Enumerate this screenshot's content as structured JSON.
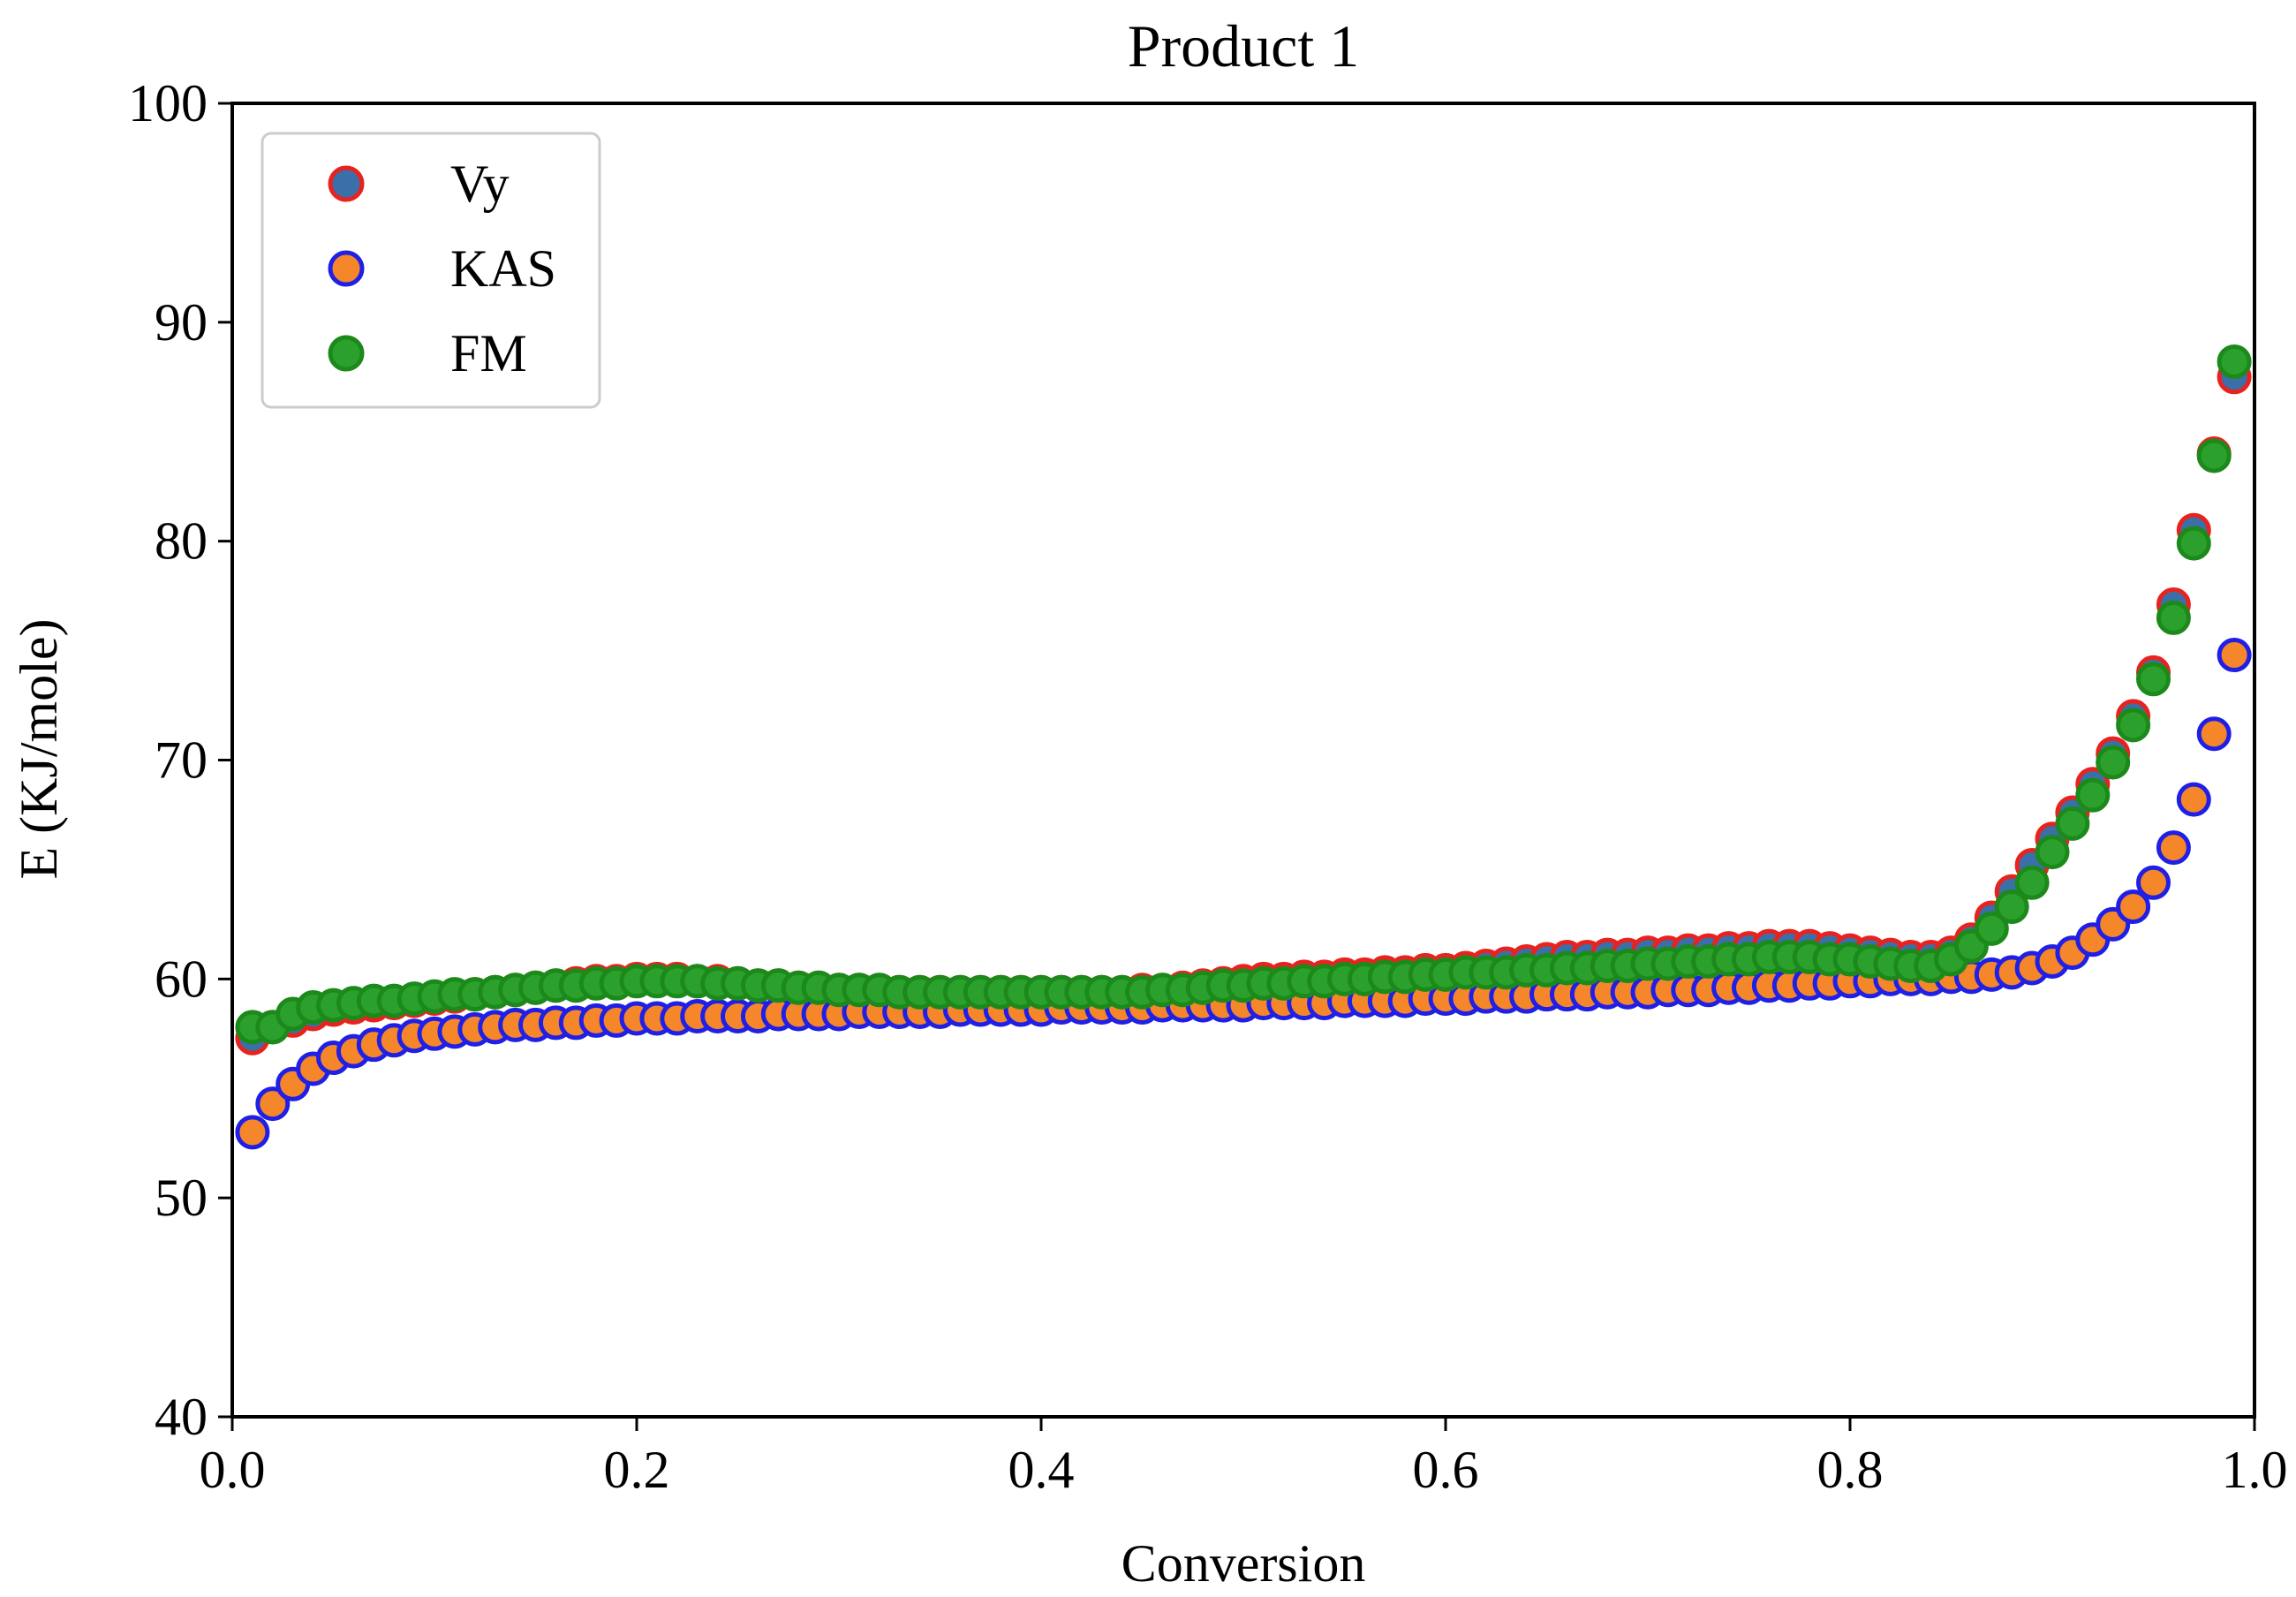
{
  "chart_data": {
    "type": "scatter",
    "title": "Product 1",
    "xlabel": "Conversion",
    "ylabel": "E (KJ/mole)",
    "xlim": [
      0.0,
      1.0
    ],
    "ylim": [
      40,
      100
    ],
    "xticks": [
      0.0,
      0.2,
      0.4,
      0.6,
      0.8,
      1.0
    ],
    "xtick_labels": [
      "0.0",
      "0.2",
      "0.4",
      "0.6",
      "0.8",
      "1.0"
    ],
    "yticks": [
      40,
      50,
      60,
      70,
      80,
      90,
      100
    ],
    "ytick_labels": [
      "40",
      "50",
      "60",
      "70",
      "80",
      "90",
      "100"
    ],
    "grid": false,
    "legend_position": "top-left",
    "x": [
      0.01,
      0.02,
      0.03,
      0.04,
      0.05,
      0.06,
      0.07,
      0.08,
      0.09,
      0.1,
      0.11,
      0.12,
      0.13,
      0.14,
      0.15,
      0.16,
      0.17,
      0.18,
      0.19,
      0.2,
      0.21,
      0.22,
      0.23,
      0.24,
      0.25,
      0.26,
      0.27,
      0.28,
      0.29,
      0.3,
      0.31,
      0.32,
      0.33,
      0.34,
      0.35,
      0.36,
      0.37,
      0.38,
      0.39,
      0.4,
      0.41,
      0.42,
      0.43,
      0.44,
      0.45,
      0.46,
      0.47,
      0.48,
      0.49,
      0.5,
      0.51,
      0.52,
      0.53,
      0.54,
      0.55,
      0.56,
      0.57,
      0.58,
      0.59,
      0.6,
      0.61,
      0.62,
      0.63,
      0.64,
      0.65,
      0.66,
      0.67,
      0.68,
      0.69,
      0.7,
      0.71,
      0.72,
      0.73,
      0.74,
      0.75,
      0.76,
      0.77,
      0.78,
      0.79,
      0.8,
      0.81,
      0.82,
      0.83,
      0.84,
      0.85,
      0.86,
      0.87,
      0.88,
      0.89,
      0.9,
      0.91,
      0.92,
      0.93,
      0.94,
      0.95,
      0.96,
      0.97,
      0.98,
      0.99
    ],
    "series": [
      {
        "name": "Vy",
        "fill": "#3b6fa8",
        "edge": "#e8231f",
        "values": [
          57.3,
          57.8,
          58.1,
          58.4,
          58.6,
          58.7,
          58.8,
          58.9,
          59.0,
          59.1,
          59.2,
          59.3,
          59.4,
          59.5,
          59.6,
          59.7,
          59.8,
          59.9,
          59.9,
          60.0,
          60.0,
          60.0,
          59.9,
          59.9,
          59.8,
          59.7,
          59.7,
          59.6,
          59.6,
          59.5,
          59.5,
          59.5,
          59.4,
          59.4,
          59.4,
          59.4,
          59.4,
          59.4,
          59.4,
          59.4,
          59.4,
          59.4,
          59.4,
          59.4,
          59.5,
          59.5,
          59.6,
          59.7,
          59.8,
          59.9,
          60.0,
          60.0,
          60.1,
          60.1,
          60.2,
          60.2,
          60.3,
          60.3,
          60.4,
          60.4,
          60.5,
          60.6,
          60.7,
          60.8,
          60.9,
          61.0,
          61.0,
          61.1,
          61.1,
          61.2,
          61.2,
          61.3,
          61.3,
          61.4,
          61.4,
          61.5,
          61.5,
          61.5,
          61.4,
          61.3,
          61.2,
          61.1,
          61.0,
          61.0,
          61.2,
          61.8,
          62.8,
          64.0,
          65.2,
          66.4,
          67.6,
          68.9,
          70.3,
          72.0,
          74.0,
          77.1,
          80.5,
          84.0,
          87.5
        ]
      },
      {
        "name": "KAS",
        "fill": "#f5862a",
        "edge": "#1f1fe6",
        "values": [
          53.0,
          54.3,
          55.2,
          55.9,
          56.4,
          56.7,
          57.0,
          57.2,
          57.4,
          57.5,
          57.6,
          57.7,
          57.8,
          57.9,
          57.9,
          58.0,
          58.0,
          58.1,
          58.1,
          58.2,
          58.2,
          58.2,
          58.3,
          58.3,
          58.3,
          58.3,
          58.4,
          58.4,
          58.4,
          58.4,
          58.5,
          58.5,
          58.5,
          58.5,
          58.5,
          58.6,
          58.6,
          58.6,
          58.6,
          58.6,
          58.7,
          58.7,
          58.7,
          58.7,
          58.7,
          58.8,
          58.8,
          58.8,
          58.8,
          58.8,
          58.9,
          58.9,
          58.9,
          58.9,
          59.0,
          59.0,
          59.0,
          59.0,
          59.1,
          59.1,
          59.1,
          59.2,
          59.2,
          59.2,
          59.3,
          59.3,
          59.3,
          59.4,
          59.4,
          59.4,
          59.5,
          59.5,
          59.5,
          59.6,
          59.6,
          59.7,
          59.7,
          59.8,
          59.8,
          59.9,
          59.9,
          60.0,
          60.0,
          60.0,
          60.1,
          60.1,
          60.2,
          60.3,
          60.5,
          60.8,
          61.2,
          61.8,
          62.5,
          63.3,
          64.4,
          66.0,
          68.2,
          71.2,
          74.8
        ]
      },
      {
        "name": "FM",
        "fill": "#2ca02c",
        "edge": "#1b8a1b",
        "values": [
          57.8,
          57.8,
          58.4,
          58.7,
          58.8,
          58.9,
          59.0,
          59.0,
          59.1,
          59.2,
          59.3,
          59.3,
          59.4,
          59.5,
          59.6,
          59.7,
          59.7,
          59.8,
          59.8,
          59.9,
          59.9,
          59.9,
          59.9,
          59.8,
          59.8,
          59.7,
          59.7,
          59.6,
          59.6,
          59.5,
          59.5,
          59.5,
          59.4,
          59.4,
          59.4,
          59.4,
          59.4,
          59.4,
          59.4,
          59.4,
          59.4,
          59.4,
          59.4,
          59.4,
          59.4,
          59.5,
          59.5,
          59.6,
          59.7,
          59.7,
          59.8,
          59.8,
          59.9,
          59.9,
          60.0,
          60.0,
          60.1,
          60.1,
          60.2,
          60.2,
          60.3,
          60.3,
          60.3,
          60.4,
          60.4,
          60.5,
          60.5,
          60.6,
          60.6,
          60.7,
          60.7,
          60.8,
          60.8,
          60.9,
          60.9,
          61.0,
          61.0,
          61.0,
          60.9,
          60.9,
          60.8,
          60.7,
          60.6,
          60.6,
          60.9,
          61.5,
          62.3,
          63.3,
          64.4,
          65.8,
          67.1,
          68.4,
          69.9,
          71.6,
          73.7,
          76.5,
          79.9,
          83.9,
          88.2
        ]
      }
    ]
  }
}
